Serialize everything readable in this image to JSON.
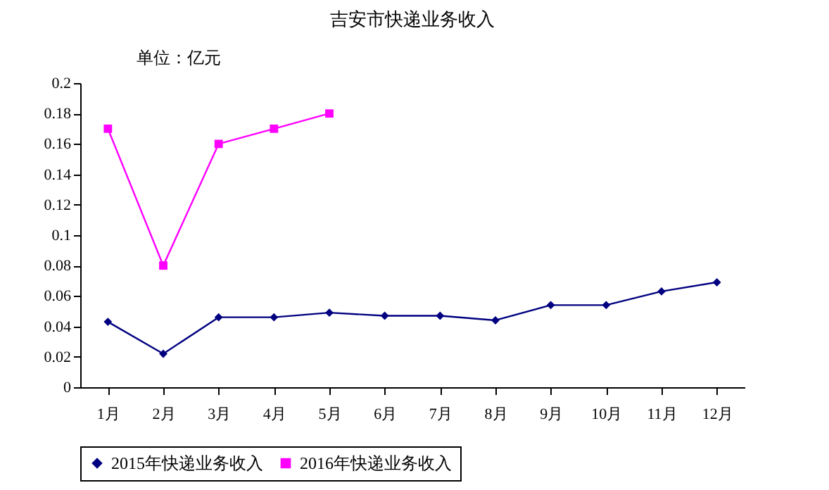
{
  "chart_data": {
    "type": "line",
    "title": "吉安市快递业务收入",
    "annotations": [
      "单位：亿元"
    ],
    "categories": [
      "1月",
      "2月",
      "3月",
      "4月",
      "5月",
      "6月",
      "7月",
      "8月",
      "9月",
      "10月",
      "11月",
      "12月"
    ],
    "series": [
      {
        "name": "2015年快递业务收入",
        "color": "#000080",
        "marker": "diamond",
        "values": [
          0.043,
          0.022,
          0.046,
          0.046,
          0.049,
          0.047,
          0.047,
          0.044,
          0.054,
          0.054,
          0.063,
          0.069
        ]
      },
      {
        "name": "2016年快递业务收入",
        "color": "#ff00ff",
        "marker": "square",
        "values": [
          0.17,
          0.08,
          0.16,
          0.17,
          0.18,
          null,
          null,
          null,
          null,
          null,
          null,
          null
        ]
      }
    ],
    "ylim": [
      0,
      0.2
    ],
    "yticks": [
      0,
      0.02,
      0.04,
      0.06,
      0.08,
      0.1,
      0.12,
      0.14,
      0.16,
      0.18,
      0.2
    ],
    "grid": false,
    "legend": "bottom",
    "line_style": "solid"
  }
}
